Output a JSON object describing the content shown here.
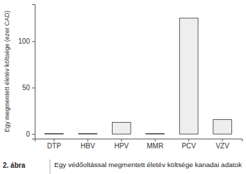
{
  "chart_data": {
    "type": "bar",
    "y_label": "Egy megmentett életév költsége (ezer CAD)",
    "categories": [
      "DTP",
      "HBV",
      "HPV",
      "MMR",
      "PCV",
      "VZV"
    ],
    "values": [
      0.5,
      0.5,
      12.5,
      0.5,
      125,
      15.5
    ],
    "color": "#eeeeee",
    "ylim": [
      -5,
      140
    ],
    "yticks": [
      0,
      50,
      100
    ],
    "grid": false,
    "annotations": [
      "2. ábra",
      "Egy védőoltással megmentett életév költsége kanadai adatok"
    ]
  }
}
